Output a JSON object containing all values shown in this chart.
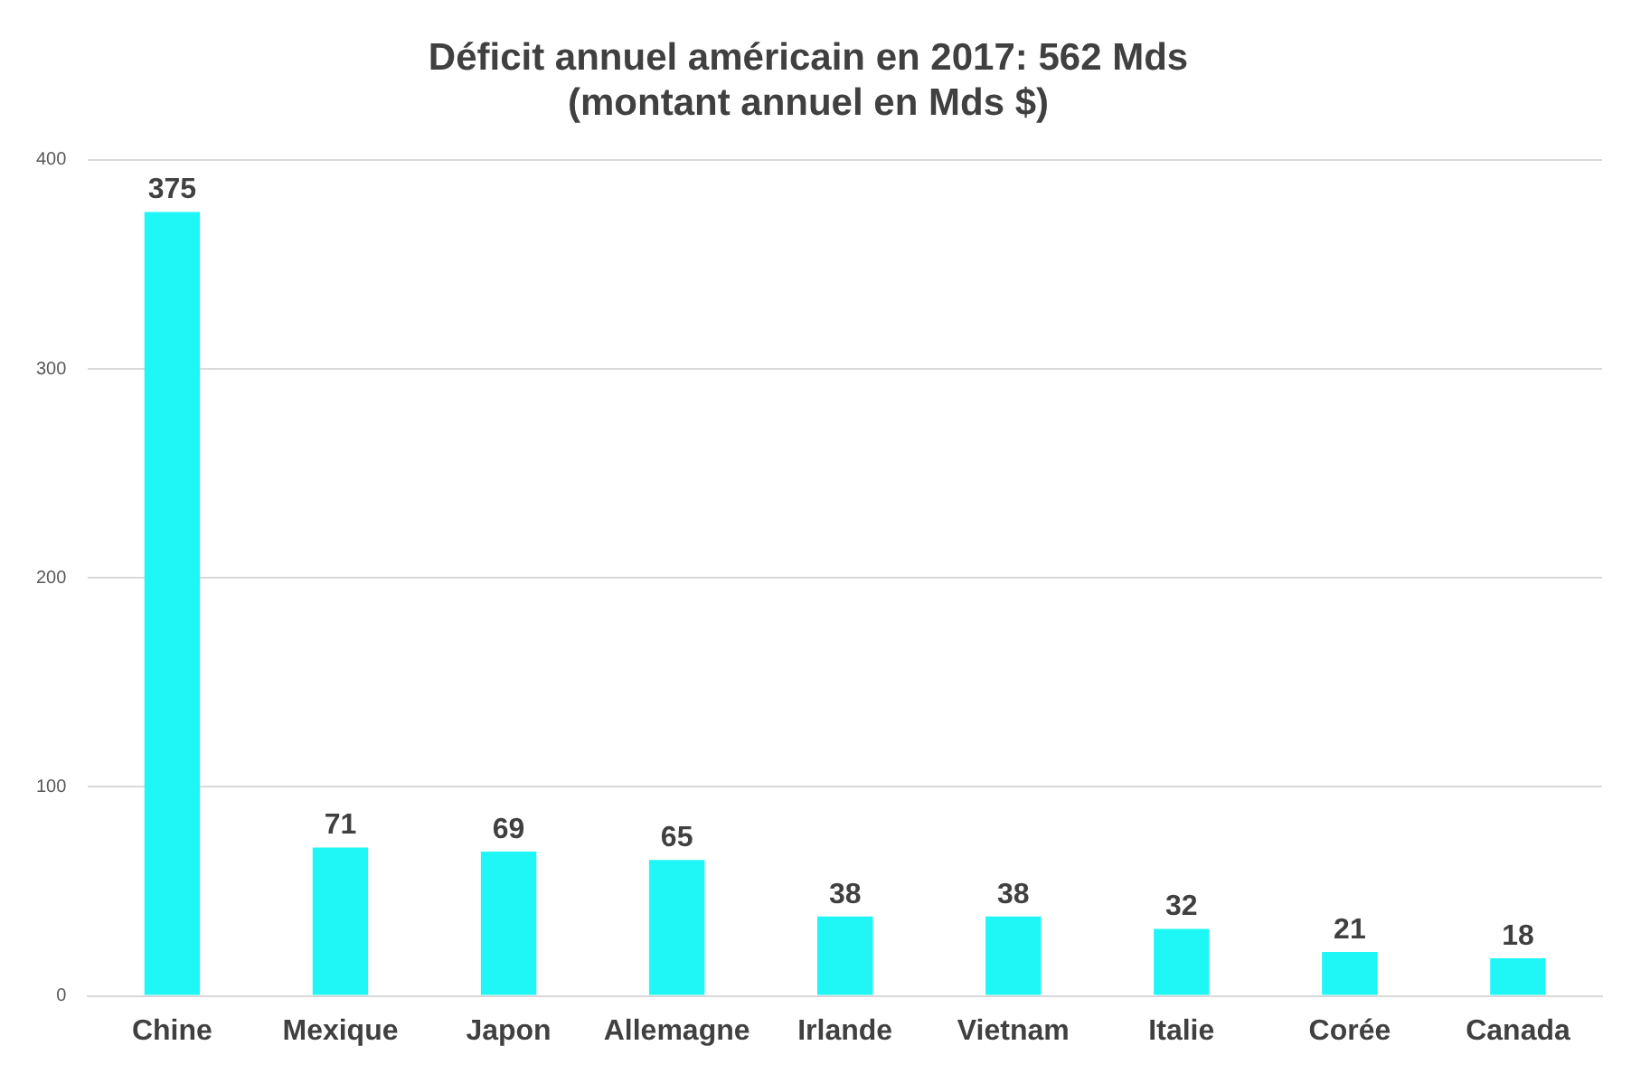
{
  "chart_data": {
    "type": "bar",
    "title": [
      "Déficit annuel américain en 2017: 562 Mds",
      "(montant annuel en Mds $)"
    ],
    "categories": [
      "Chine",
      "Mexique",
      "Japon",
      "Allemagne",
      "Irlande",
      "Vietnam",
      "Italie",
      "Corée",
      "Canada"
    ],
    "values": [
      375,
      71,
      69,
      65,
      38,
      38,
      32,
      21,
      18
    ],
    "color": "#1ff7f7",
    "ylim": [
      0,
      400
    ],
    "yticks": [
      0,
      100,
      200,
      300,
      400
    ],
    "grid": "y",
    "data_labels": true,
    "legend": false
  }
}
